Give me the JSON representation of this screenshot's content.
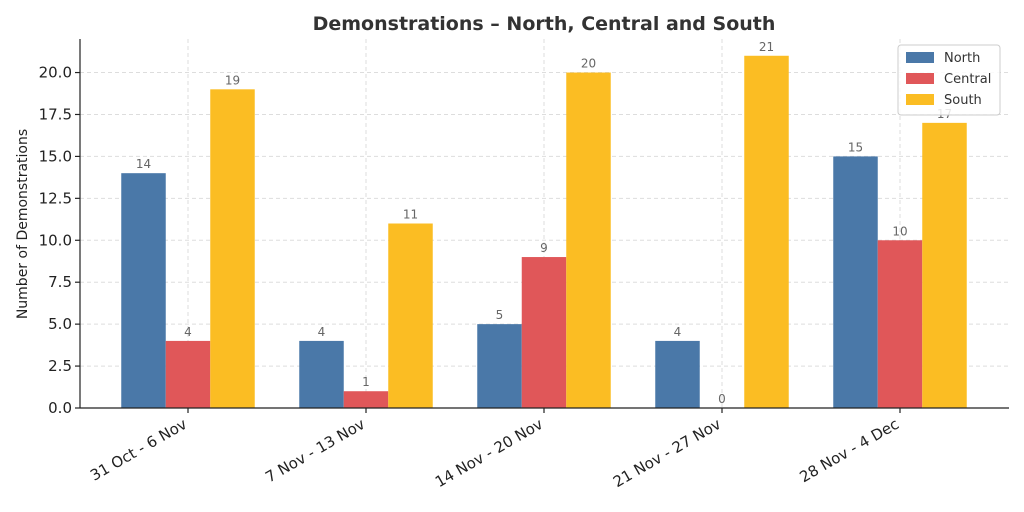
{
  "colors": {
    "North": "#4a78a8",
    "Central": "#e05759",
    "South": "#fbbd23"
  },
  "chart_data": {
    "type": "bar",
    "title": "Demonstrations – North, Central and South",
    "xlabel": "",
    "ylabel": "Number of Demonstrations",
    "categories": [
      "31 Oct - 6 Nov",
      "7 Nov - 13 Nov",
      "14 Nov - 20 Nov",
      "21 Nov - 27 Nov",
      "28 Nov - 4 Dec"
    ],
    "series": [
      {
        "name": "North",
        "values": [
          14,
          4,
          5,
          4,
          15
        ]
      },
      {
        "name": "Central",
        "values": [
          4,
          1,
          9,
          0,
          10
        ]
      },
      {
        "name": "South",
        "values": [
          19,
          11,
          20,
          21,
          17
        ]
      }
    ],
    "ylim": [
      0,
      22
    ],
    "yticks": [
      0,
      2.5,
      5,
      7.5,
      10,
      12.5,
      15,
      17.5,
      20
    ],
    "ytick_labels": [
      "0.0",
      "2.5",
      "5.0",
      "7.5",
      "10.0",
      "12.5",
      "15.0",
      "17.5",
      "20.0"
    ],
    "grid": true,
    "legend_position": "top-right"
  }
}
